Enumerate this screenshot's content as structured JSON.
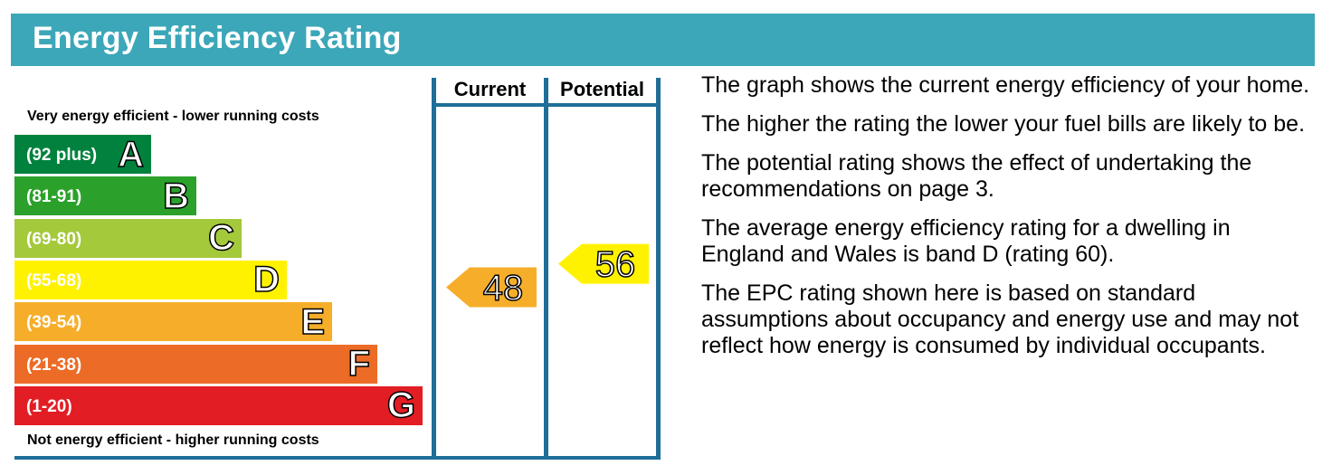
{
  "header": {
    "title": "Energy Efficiency Rating"
  },
  "caption_top": "Very energy efficient - lower running costs",
  "caption_bottom": "Not energy efficient - higher running costs",
  "columns": {
    "current": "Current",
    "potential": "Potential"
  },
  "description": [
    "The graph shows the current energy efficiency of your home.",
    "The higher the rating the lower your fuel bills are likely to be.",
    "The potential rating shows the effect of undertaking the recommendations on page 3.",
    "The average energy efficiency rating for a dwelling in England and Wales is band D (rating 60).",
    "The EPC rating shown here is based on standard assumptions about occupancy and energy use and may not reflect how energy is consumed by individual occupants."
  ],
  "chart_data": {
    "type": "bar",
    "title": "Energy Efficiency Rating",
    "bands": [
      {
        "letter": "A",
        "range": "(92 plus)",
        "color": "#00823e"
      },
      {
        "letter": "B",
        "range": "(81-91)",
        "color": "#2ba12b"
      },
      {
        "letter": "C",
        "range": "(69-80)",
        "color": "#a4c93b"
      },
      {
        "letter": "D",
        "range": "(55-68)",
        "color": "#fff200"
      },
      {
        "letter": "E",
        "range": "(39-54)",
        "color": "#f6ae2a"
      },
      {
        "letter": "F",
        "range": "(21-38)",
        "color": "#ec6b26"
      },
      {
        "letter": "G",
        "range": "(1-20)",
        "color": "#e31d24"
      }
    ],
    "current": {
      "value": 48,
      "band": "E",
      "color": "#f6ae2a"
    },
    "potential": {
      "value": 56,
      "band": "D",
      "color": "#fff200"
    }
  }
}
